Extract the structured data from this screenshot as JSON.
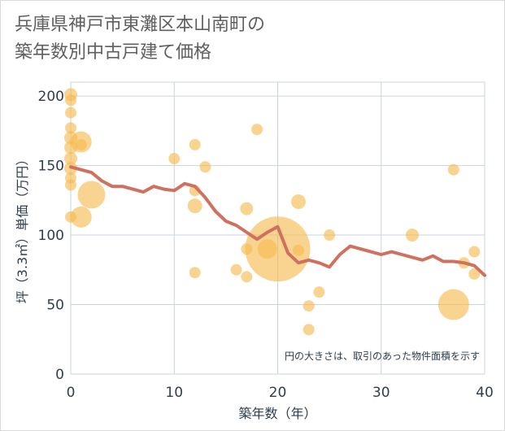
{
  "title_lines": [
    "兵庫県神戸市東灘区本山南町の",
    "築年数別中古戸建て価格"
  ],
  "chart_data": {
    "type": "scatter+line",
    "xlabel": "築年数（年）",
    "ylabel": "坪（3.3㎡）単価（万円）",
    "xlim": [
      0,
      40
    ],
    "ylim": [
      0,
      210
    ],
    "x_ticks": [
      0,
      10,
      20,
      30,
      40
    ],
    "y_ticks": [
      0,
      50,
      100,
      150,
      200
    ],
    "grid": true,
    "annotation": "円の大きさは、取引のあった物件面積を示す",
    "bubble_color": "#f5b94e",
    "line_color": "#d0705e",
    "bubbles": [
      {
        "x": 0,
        "y": 201,
        "r": 8
      },
      {
        "x": 0,
        "y": 197,
        "r": 7
      },
      {
        "x": 0,
        "y": 188,
        "r": 7
      },
      {
        "x": 0,
        "y": 177,
        "r": 7
      },
      {
        "x": 0,
        "y": 170,
        "r": 8
      },
      {
        "x": 0,
        "y": 163,
        "r": 8
      },
      {
        "x": 0,
        "y": 155,
        "r": 8
      },
      {
        "x": 0,
        "y": 148,
        "r": 8
      },
      {
        "x": 0,
        "y": 141,
        "r": 7
      },
      {
        "x": 0,
        "y": 136,
        "r": 7
      },
      {
        "x": 0,
        "y": 113,
        "r": 7
      },
      {
        "x": 1,
        "y": 167,
        "r": 13
      },
      {
        "x": 1,
        "y": 165,
        "r": 7
      },
      {
        "x": 1,
        "y": 113,
        "r": 13
      },
      {
        "x": 2,
        "y": 129,
        "r": 17
      },
      {
        "x": 10,
        "y": 155,
        "r": 7
      },
      {
        "x": 12,
        "y": 165,
        "r": 7
      },
      {
        "x": 12,
        "y": 132,
        "r": 7
      },
      {
        "x": 12,
        "y": 121,
        "r": 9
      },
      {
        "x": 12,
        "y": 73,
        "r": 7
      },
      {
        "x": 13,
        "y": 149,
        "r": 7
      },
      {
        "x": 16,
        "y": 75,
        "r": 7
      },
      {
        "x": 17,
        "y": 119,
        "r": 8
      },
      {
        "x": 17,
        "y": 90,
        "r": 7
      },
      {
        "x": 17,
        "y": 70,
        "r": 7
      },
      {
        "x": 18,
        "y": 176,
        "r": 7
      },
      {
        "x": 19,
        "y": 90,
        "r": 12
      },
      {
        "x": 20,
        "y": 90,
        "r": 40
      },
      {
        "x": 22,
        "y": 124,
        "r": 9
      },
      {
        "x": 22,
        "y": 89,
        "r": 7
      },
      {
        "x": 23,
        "y": 49,
        "r": 7
      },
      {
        "x": 23,
        "y": 32,
        "r": 7
      },
      {
        "x": 24,
        "y": 59,
        "r": 7
      },
      {
        "x": 25,
        "y": 100,
        "r": 7
      },
      {
        "x": 33,
        "y": 100,
        "r": 8
      },
      {
        "x": 37,
        "y": 147,
        "r": 7
      },
      {
        "x": 37,
        "y": 50,
        "r": 19
      },
      {
        "x": 38,
        "y": 80,
        "r": 7
      },
      {
        "x": 39,
        "y": 88,
        "r": 7
      },
      {
        "x": 39,
        "y": 72,
        "r": 7
      }
    ],
    "line": {
      "x": [
        0,
        1,
        2,
        3,
        4,
        5,
        6,
        7,
        8,
        9,
        10,
        11,
        12,
        13,
        14,
        15,
        16,
        17,
        18,
        19,
        20,
        21,
        22,
        23,
        24,
        25,
        26,
        27,
        28,
        29,
        30,
        31,
        32,
        33,
        34,
        35,
        36,
        37,
        38,
        39,
        40
      ],
      "y": [
        149,
        147,
        145,
        139,
        135,
        135,
        133,
        131,
        135,
        133,
        132,
        137,
        135,
        127,
        117,
        110,
        107,
        102,
        97,
        102,
        106,
        87,
        80,
        82,
        80,
        77,
        86,
        92,
        90,
        88,
        86,
        88,
        86,
        84,
        82,
        85,
        81,
        81,
        80,
        78,
        71
      ]
    }
  }
}
